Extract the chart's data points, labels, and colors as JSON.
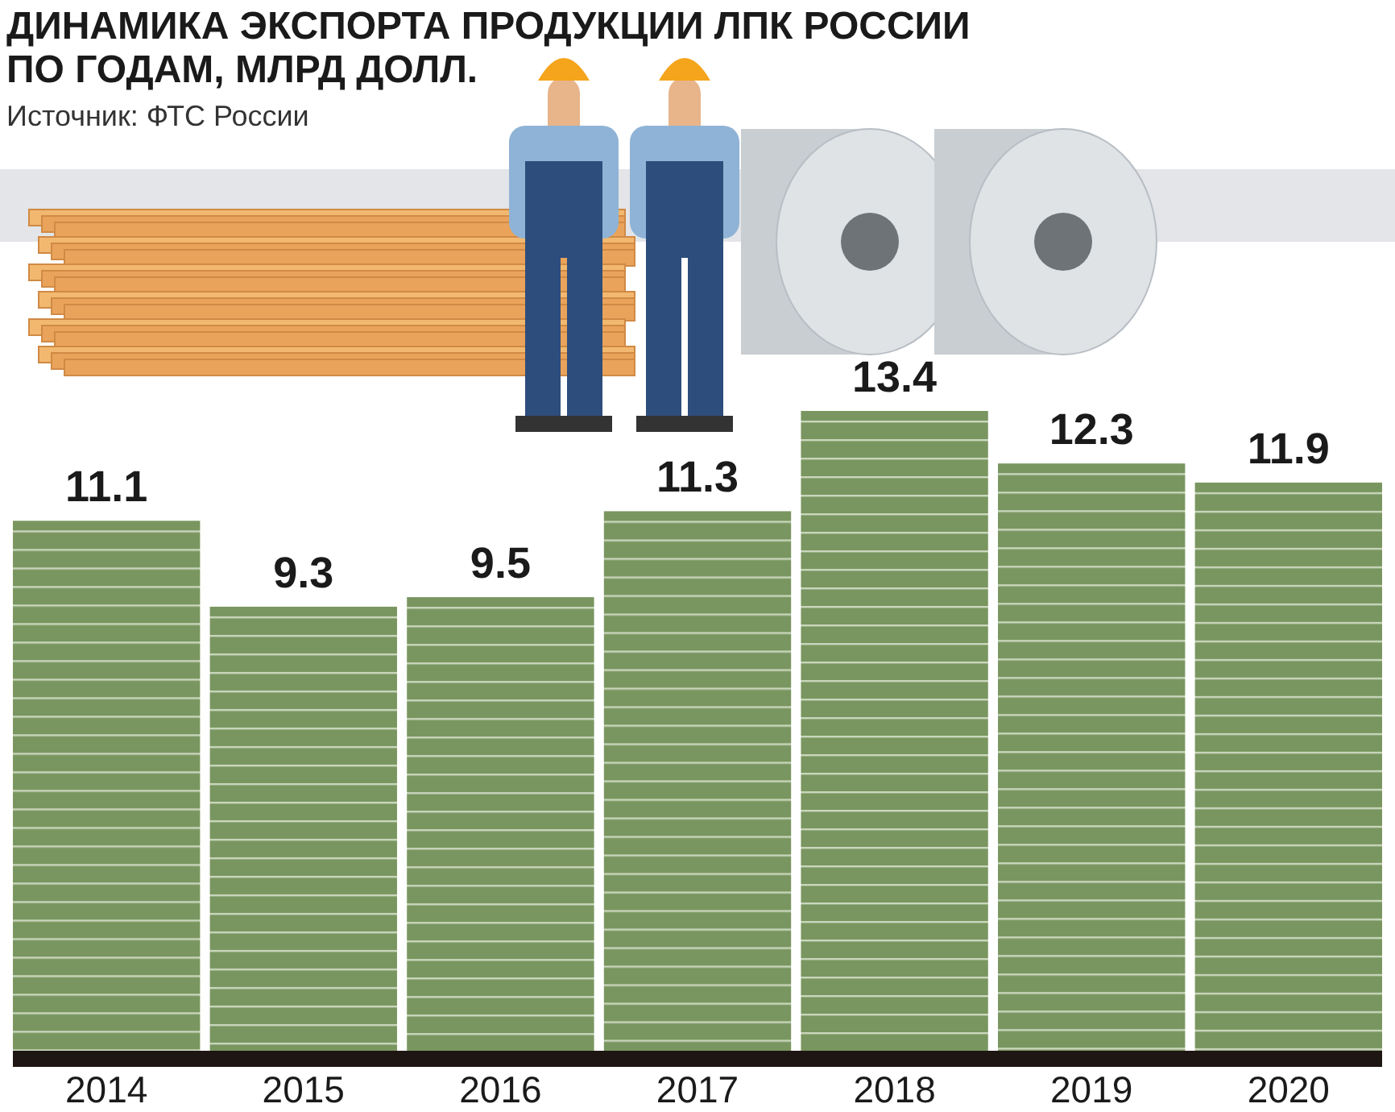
{
  "chart_data": {
    "type": "bar",
    "title": "ДИНАМИКА ЭКСПОРТА ПРОДУКЦИИ ЛПК РОССИИ\nПО ГОДАМ, МЛРД ДОЛЛ.",
    "annotations": [
      "Источник: ФТС России"
    ],
    "categories": [
      "2014",
      "2015",
      "2016",
      "2017",
      "2018",
      "2019",
      "2020"
    ],
    "values": [
      11.1,
      9.3,
      9.5,
      11.3,
      13.4,
      12.3,
      11.9
    ],
    "color": "#7a9660",
    "data_labels": true
  }
}
